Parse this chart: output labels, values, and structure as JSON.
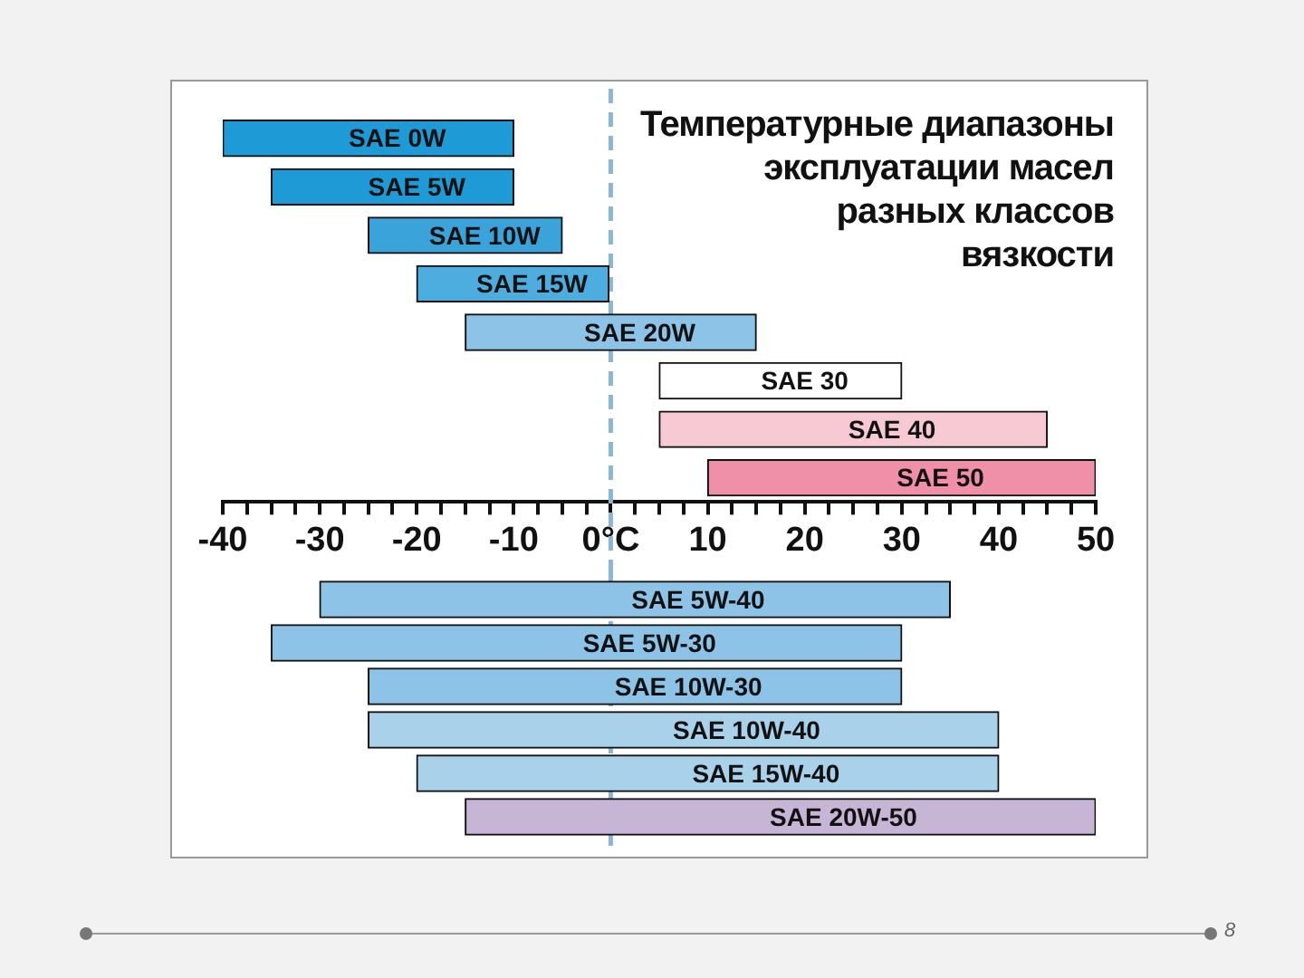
{
  "chart_data": [
    {
      "type": "bar",
      "orientation": "horizontal",
      "title": "Температурные диапазоны\nэксплуатации масел\nразных классов\nвязкости",
      "categories": [
        "SAE 0W",
        "SAE 5W",
        "SAE 10W",
        "SAE 15W",
        "SAE 20W",
        "SAE 30",
        "SAE 40",
        "SAE 50"
      ],
      "base": [
        -40,
        -35,
        -25,
        -20,
        -15,
        5,
        5,
        10
      ],
      "values": [
        30,
        25,
        20,
        20,
        30,
        25,
        40,
        40
      ],
      "colors": [
        "#1e9bd7",
        "#1e9bd7",
        "#3aa3da",
        "#4eaddf",
        "#8cc3e6",
        "#ffffff",
        "#f6c9d3",
        "#f08fa8"
      ],
      "xlim": [
        -40,
        50
      ],
      "xticks": [
        -40,
        {
          "value": -37.5,
          "label": null
        },
        {
          "value": -35,
          "label": null
        },
        {
          "value": -32.5,
          "label": null
        },
        -30,
        {
          "value": -27.5,
          "label": null
        },
        {
          "value": -25,
          "label": null
        },
        {
          "value": -22.5,
          "label": null
        },
        -20,
        {
          "value": -17.5,
          "label": null
        },
        {
          "value": -15,
          "label": null
        },
        {
          "value": -12.5,
          "label": null
        },
        -10,
        {
          "value": -7.5,
          "label": null
        },
        {
          "value": -5,
          "label": null
        },
        {
          "value": -2.5,
          "label": null
        },
        {
          "value": 0,
          "label": "0°C"
        },
        {
          "value": 2.5,
          "label": null
        },
        {
          "value": 5,
          "label": null
        },
        {
          "value": 7.5,
          "label": null
        },
        10,
        {
          "value": 12.5,
          "label": null
        },
        {
          "value": 15,
          "label": null
        },
        {
          "value": 17.5,
          "label": null
        },
        20,
        {
          "value": 22.5,
          "label": null
        },
        {
          "value": 25,
          "label": null
        },
        {
          "value": 27.5,
          "label": null
        },
        30,
        {
          "value": 32.5,
          "label": null
        },
        {
          "value": 35,
          "label": null
        },
        {
          "value": 37.5,
          "label": null
        },
        40,
        {
          "value": 42.5,
          "label": null
        },
        {
          "value": 45,
          "label": null
        },
        {
          "value": 47.5,
          "label": null
        },
        50
      ],
      "ref_lines": [
        {
          "axis": "x",
          "value": 0,
          "color": "#8ab8d4",
          "line_style": "dashed"
        }
      ],
      "annotations": [
        "8"
      ]
    },
    {
      "type": "bar",
      "orientation": "horizontal",
      "categories": [
        "SAE 5W-40",
        "SAE 5W-30",
        "SAE 10W-30",
        "SAE 10W-40",
        "SAE 15W-40",
        "SAE 20W-50"
      ],
      "base": [
        -30,
        -35,
        -25,
        -25,
        -20,
        -15
      ],
      "values": [
        65,
        65,
        55,
        65,
        60,
        65
      ],
      "colors": [
        "#8cc3e6",
        "#8cc3e6",
        "#8cc3e6",
        "#a9d1ea",
        "#a9d1ea",
        "#c7b5d6"
      ],
      "xlim": [
        -40,
        50
      ],
      "tick_labels": false,
      "ref_lines": [
        {
          "axis": "x",
          "value": 0,
          "color": "#8ab8d4",
          "line_style": "dashed"
        }
      ]
    }
  ]
}
